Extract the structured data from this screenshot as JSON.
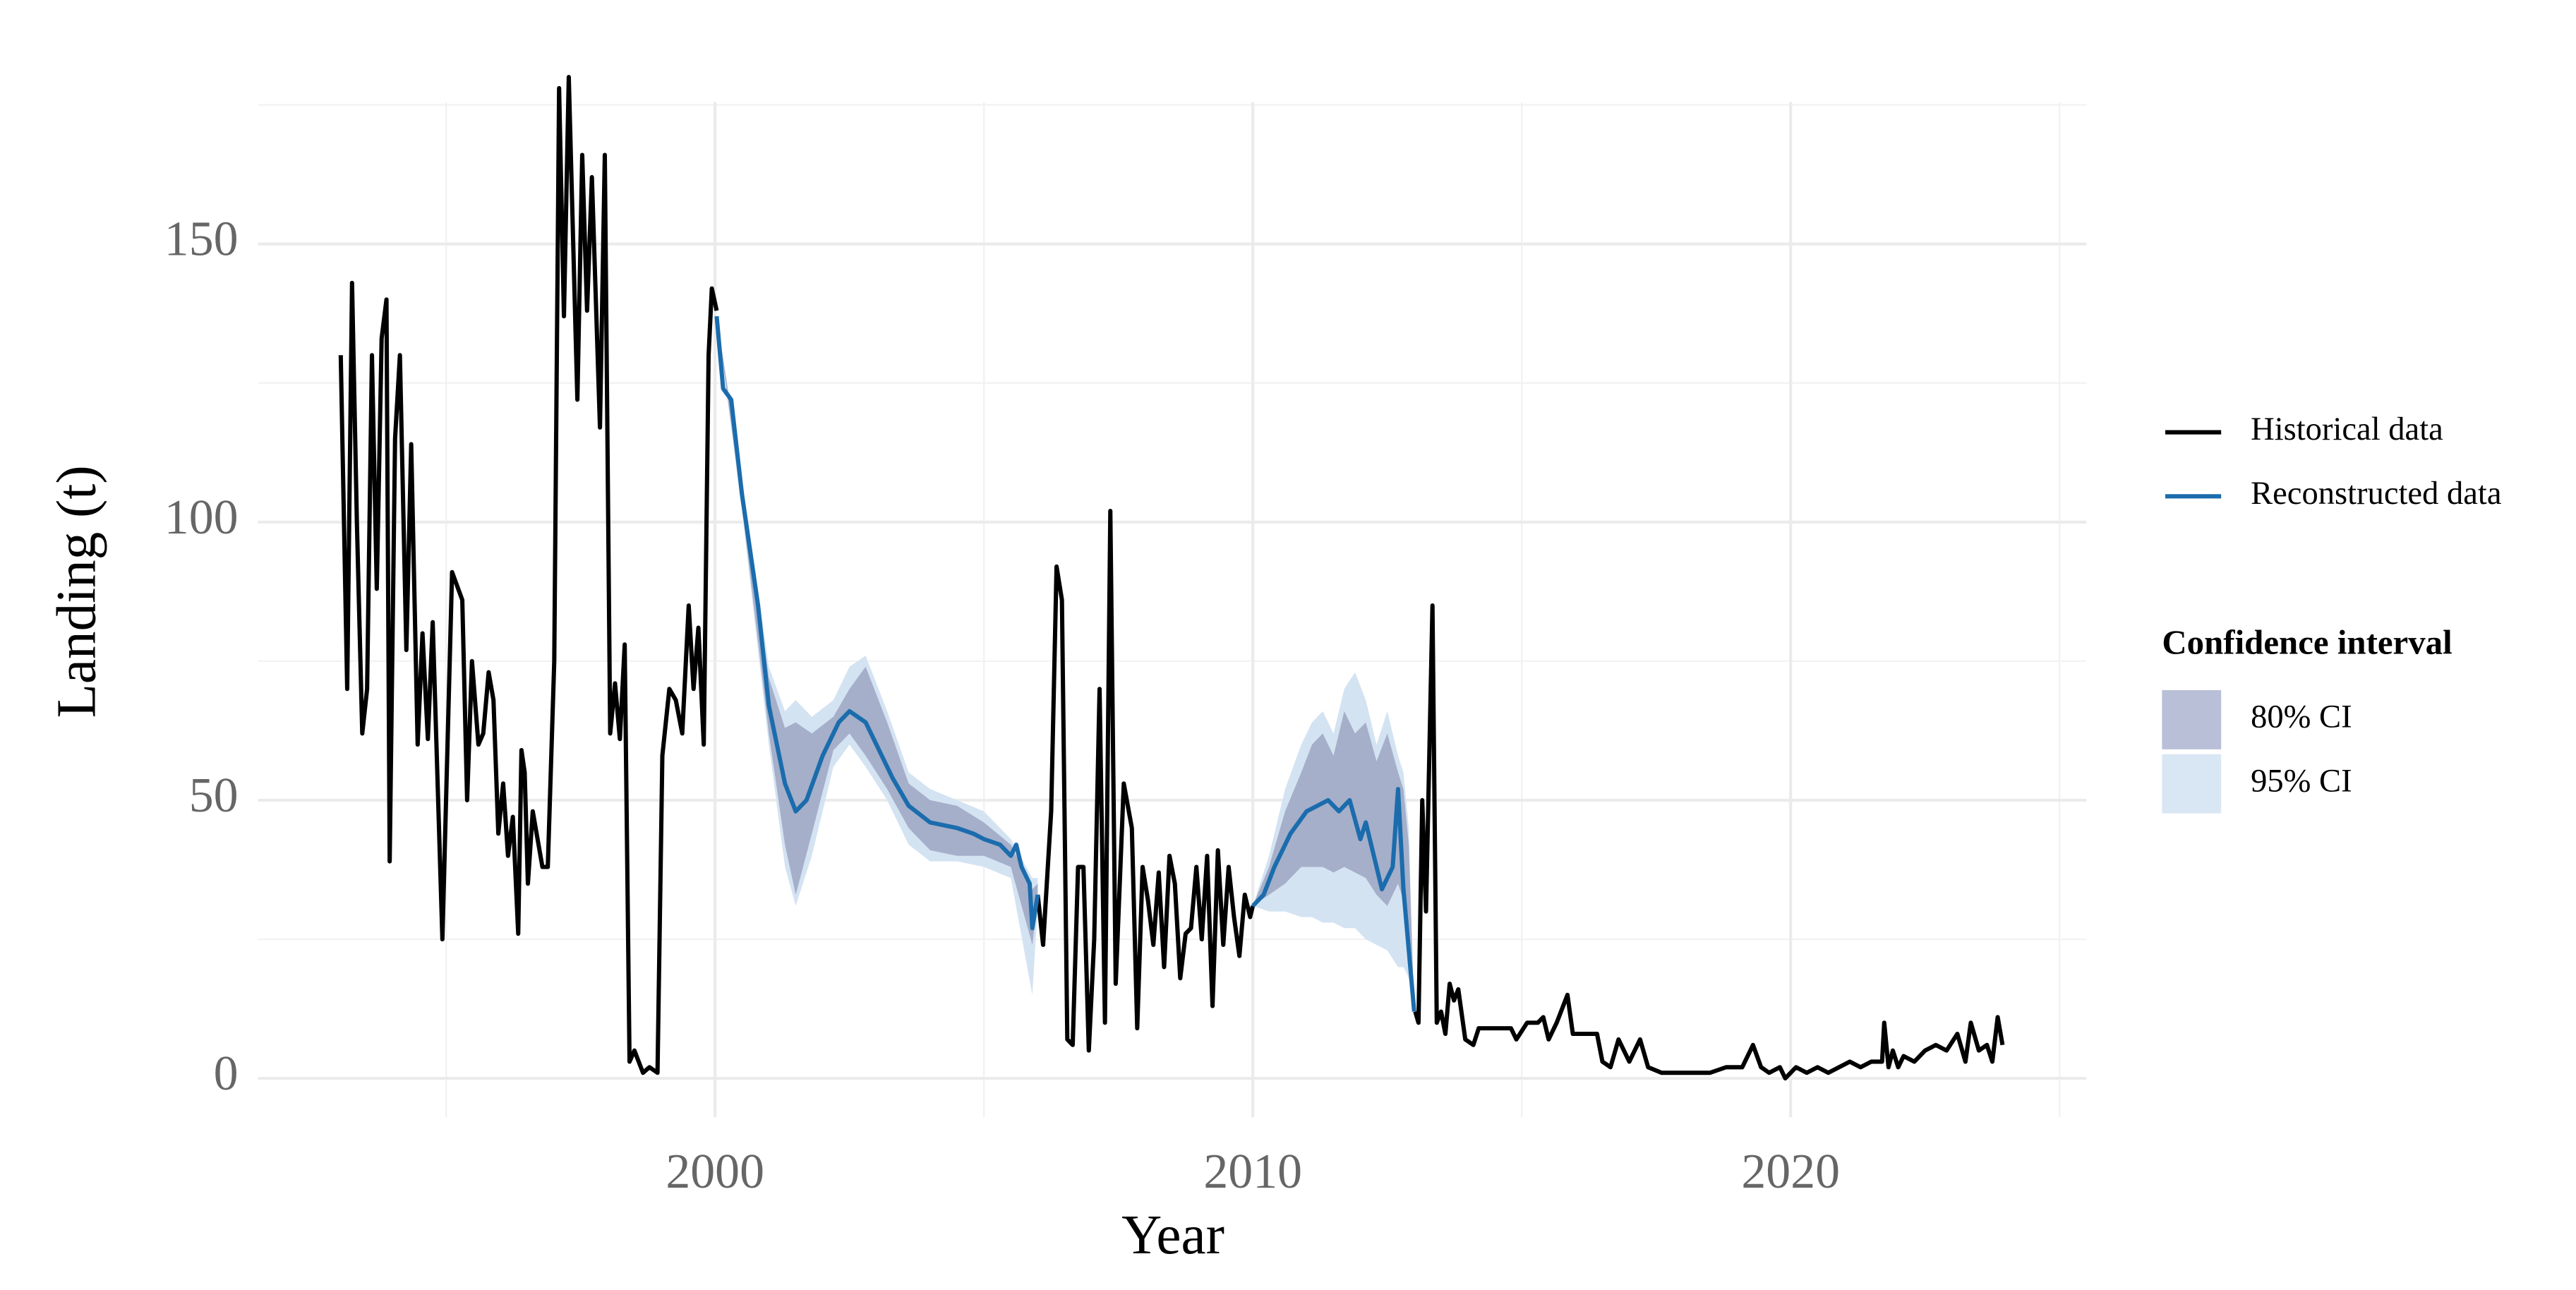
{
  "chart_data": {
    "type": "line",
    "x_label": "Year",
    "y_label": "Landing (t)",
    "xlim": [
      1991.5,
      2025.5
    ],
    "ylim": [
      -7,
      175.5
    ],
    "xticks": [
      2000,
      2010,
      2020
    ],
    "yticks": [
      0,
      50,
      100,
      150
    ],
    "x_minor": [
      1995,
      2005,
      2015,
      2025
    ],
    "y_minor": [
      25,
      75,
      125,
      175
    ],
    "grid": true,
    "legend_position": "right",
    "series": [
      {
        "name": "Historical data",
        "color": "#000000",
        "x": [
          1993.04,
          1993.16,
          1993.25,
          1993.34,
          1993.44,
          1993.53,
          1993.62,
          1993.71,
          1993.8,
          1993.89,
          1993.95,
          1994.05,
          1994.14,
          1994.26,
          1994.35,
          1994.47,
          1994.56,
          1994.66,
          1994.75,
          1994.93,
          1995.11,
          1995.3,
          1995.39,
          1995.48,
          1995.6,
          1995.69,
          1995.79,
          1995.88,
          1995.97,
          1996.06,
          1996.15,
          1996.24,
          1996.34,
          1996.4,
          1996.46,
          1996.52,
          1996.61,
          1996.7,
          1996.79,
          1996.89,
          1997.01,
          1997.1,
          1997.19,
          1997.28,
          1997.44,
          1997.53,
          1997.62,
          1997.71,
          1997.86,
          1997.95,
          1998.05,
          1998.14,
          1998.23,
          1998.32,
          1998.41,
          1998.5,
          1998.66,
          1998.78,
          1998.93,
          1999.02,
          1999.15,
          1999.27,
          1999.39,
          1999.51,
          1999.6,
          1999.69,
          1999.79,
          1999.88,
          1999.94,
          2000.03,
          null,
          2006.0,
          2006.1,
          2006.25,
          2006.35,
          2006.45,
          2006.55,
          2006.65,
          2006.75,
          2006.85,
          2006.95,
          2007.05,
          2007.15,
          2007.25,
          2007.35,
          2007.45,
          2007.6,
          2007.75,
          2007.85,
          2007.95,
          2008.05,
          2008.15,
          2008.25,
          2008.35,
          2008.45,
          2008.55,
          2008.65,
          2008.75,
          2008.85,
          2008.95,
          2009.05,
          2009.15,
          2009.25,
          2009.35,
          2009.45,
          2009.55,
          2009.65,
          2009.75,
          2009.85,
          2009.95,
          2010.0,
          null,
          2013.02,
          2013.08,
          2013.15,
          2013.22,
          2013.34,
          2013.42,
          2013.5,
          2013.58,
          2013.66,
          2013.74,
          2013.82,
          2013.95,
          2014.1,
          2014.2,
          2014.8,
          2014.9,
          2015.1,
          2015.3,
          2015.4,
          2015.5,
          2015.65,
          2015.85,
          2015.95,
          2016.4,
          2016.5,
          2016.65,
          2016.8,
          2017.0,
          2017.2,
          2017.35,
          2017.6,
          2018.0,
          2018.5,
          2018.8,
          2019.1,
          2019.3,
          2019.45,
          2019.6,
          2019.8,
          2019.9,
          2020.1,
          2020.3,
          2020.5,
          2020.7,
          2020.9,
          2021.1,
          2021.3,
          2021.5,
          2021.7,
          2021.74,
          2021.82,
          2021.9,
          2022.0,
          2022.1,
          2022.3,
          2022.5,
          2022.7,
          2022.9,
          2023.1,
          2023.25,
          2023.35,
          2023.5,
          2023.65,
          2023.75,
          2023.85,
          2023.94
        ],
        "values": [
          130,
          70,
          143,
          100,
          62,
          70,
          130,
          88,
          133,
          140,
          39,
          115,
          130,
          77,
          114,
          60,
          80,
          61,
          82,
          25,
          91,
          86,
          50,
          75,
          60,
          62,
          73,
          68,
          44,
          53,
          40,
          47,
          26,
          59,
          55,
          35,
          48,
          43,
          38,
          38,
          75,
          178,
          137,
          180,
          122,
          166,
          138,
          162,
          117,
          166,
          62,
          71,
          61,
          78,
          3,
          5,
          1,
          2,
          1,
          58,
          70,
          68,
          62,
          85,
          70,
          81,
          60,
          130,
          142,
          138,
          null,
          33,
          24,
          48,
          92,
          86,
          7,
          6,
          38,
          38,
          5,
          25,
          70,
          10,
          102,
          17,
          53,
          45,
          9,
          38,
          32,
          24,
          37,
          20,
          40,
          35,
          18,
          26,
          27,
          38,
          25,
          40,
          13,
          41,
          24,
          38,
          29,
          22,
          33,
          29,
          31,
          null,
          12,
          10,
          50,
          30,
          85,
          10,
          12,
          8,
          17,
          14,
          16,
          7,
          6,
          9,
          9,
          7,
          10,
          10,
          11,
          7,
          10,
          15,
          8,
          8,
          3,
          2,
          7,
          3,
          7,
          2,
          1,
          1,
          1,
          2,
          2,
          6,
          2,
          1,
          2,
          0,
          2,
          1,
          2,
          1,
          2,
          3,
          2,
          3,
          3,
          10,
          2,
          5,
          2,
          4,
          3,
          5,
          6,
          5,
          8,
          3,
          10,
          5,
          6,
          3,
          11,
          6
        ]
      },
      {
        "name": "Reconstructed data",
        "color": "#1b6cad",
        "x": [
          2000.03,
          2000.15,
          2000.3,
          2000.5,
          2000.8,
          2001.0,
          2001.3,
          2001.5,
          2001.7,
          2002.0,
          2002.3,
          2002.5,
          2002.8,
          2003.0,
          2003.3,
          2003.6,
          2004.0,
          2004.5,
          2004.8,
          2005.0,
          2005.3,
          2005.5,
          2005.6,
          2005.7,
          2005.85,
          2005.9,
          2006.0,
          null,
          2010.0,
          2010.2,
          2010.4,
          2010.7,
          2011.0,
          2011.2,
          2011.4,
          2011.6,
          2011.8,
          2012.0,
          2012.1,
          2012.2,
          2012.4,
          2012.6,
          2012.7,
          2012.8,
          2013.0
        ],
        "values": [
          137,
          124,
          122,
          105,
          85,
          67,
          53,
          48,
          50,
          58,
          64,
          66,
          64,
          60,
          54,
          49,
          46,
          45,
          44,
          43,
          42,
          40,
          42,
          38,
          35,
          27,
          33,
          null,
          31,
          33,
          38,
          44,
          48,
          49,
          50,
          48,
          50,
          43,
          46,
          42,
          34,
          38,
          52,
          34,
          12
        ]
      }
    ],
    "bands": {
      "title": "Confidence interval",
      "items": [
        {
          "name": "95% CI",
          "color": "#d4e3f2",
          "legend_color": "#d9e6f4",
          "x": [
            2000.03,
            2000.5,
            2001.0,
            2001.3,
            2001.5,
            2001.8,
            2002.2,
            2002.5,
            2002.8,
            2003.2,
            2003.6,
            2004.0,
            2004.5,
            2005.0,
            2005.5,
            2005.9,
            2006.0,
            null,
            2010.0,
            2010.3,
            2010.6,
            2010.9,
            2011.1,
            2011.3,
            2011.5,
            2011.7,
            2011.9,
            2012.1,
            2012.3,
            2012.5,
            2012.7,
            2012.8,
            2012.9,
            2013.0
          ],
          "lower": [
            137,
            102,
            60,
            38,
            31,
            40,
            56,
            60,
            56,
            50,
            42,
            39,
            39,
            38,
            36,
            15,
            31,
            null,
            31,
            30,
            30,
            29,
            29,
            28,
            28,
            27,
            27,
            25,
            24,
            23,
            20,
            20,
            18,
            12
          ],
          "upper": [
            137,
            108,
            74,
            66,
            68,
            65,
            68,
            74,
            76,
            66,
            55,
            52,
            50,
            48,
            43,
            36,
            36,
            null,
            31,
            40,
            52,
            60,
            64,
            66,
            62,
            70,
            73,
            68,
            60,
            66,
            58,
            55,
            45,
            12
          ]
        },
        {
          "name": "80% CI",
          "color": "#a5afc9",
          "legend_color": "#b8bfd6",
          "x": [
            2000.03,
            2000.5,
            2001.0,
            2001.3,
            2001.5,
            2001.8,
            2002.2,
            2002.5,
            2002.8,
            2003.2,
            2003.6,
            2004.0,
            2004.5,
            2005.0,
            2005.5,
            2005.9,
            2006.0,
            null,
            2010.0,
            2010.3,
            2010.6,
            2010.9,
            2011.1,
            2011.3,
            2011.5,
            2011.7,
            2011.9,
            2012.1,
            2012.3,
            2012.5,
            2012.7,
            2012.8,
            2012.9,
            2013.0
          ],
          "lower": [
            137,
            103,
            62,
            42,
            33,
            44,
            59,
            62,
            58,
            52,
            45,
            41,
            40,
            40,
            38,
            24,
            32,
            null,
            31,
            33,
            35,
            38,
            38,
            38,
            37,
            38,
            37,
            36,
            33,
            31,
            35,
            32,
            25,
            12
          ],
          "upper": [
            137,
            107,
            72,
            63,
            64,
            62,
            65,
            70,
            74,
            64,
            53,
            50,
            49,
            46,
            42,
            34,
            35,
            null,
            31,
            38,
            48,
            55,
            60,
            62,
            58,
            66,
            62,
            64,
            57,
            62,
            55,
            52,
            42,
            12
          ]
        }
      ]
    }
  }
}
